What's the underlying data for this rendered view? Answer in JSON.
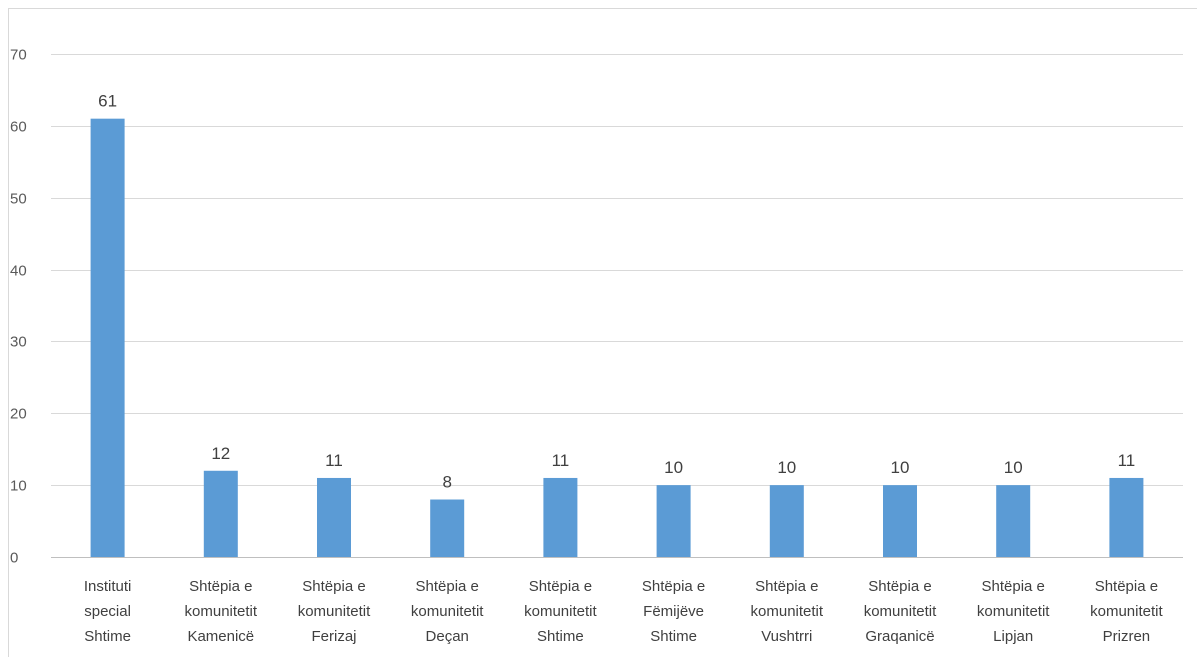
{
  "chart_data": {
    "type": "bar",
    "title": "",
    "xlabel": "",
    "ylabel": "",
    "ylim": [
      0,
      70
    ],
    "yticks": [
      0,
      10,
      20,
      30,
      40,
      50,
      60,
      70
    ],
    "grid": true,
    "legend": "none",
    "categories": [
      [
        "Instituti",
        "special",
        "Shtime"
      ],
      [
        "Shtëpia e",
        "komunitetit",
        "Kamenicë"
      ],
      [
        "Shtëpia e",
        "komunitetit",
        "Ferizaj"
      ],
      [
        "Shtëpia e",
        "komunitetit",
        "Deçan"
      ],
      [
        "Shtëpia e",
        "komunitetit",
        "Shtime"
      ],
      [
        "Shtëpia e",
        "Fëmijëve",
        "Shtime"
      ],
      [
        "Shtëpia e",
        "komunitetit",
        "Vushtrri"
      ],
      [
        "Shtëpia e",
        "komunitetit",
        "Graqanicë"
      ],
      [
        "Shtëpia e",
        "komunitetit",
        "Lipjan"
      ],
      [
        "Shtëpia e",
        "komunitetit",
        "Prizren"
      ]
    ],
    "values": [
      61,
      12,
      11,
      8,
      11,
      10,
      10,
      10,
      10,
      11
    ],
    "colors": {
      "bar": "#5b9bd5",
      "grid": "#d9d9d9",
      "axis": "#bfbfbf"
    }
  }
}
